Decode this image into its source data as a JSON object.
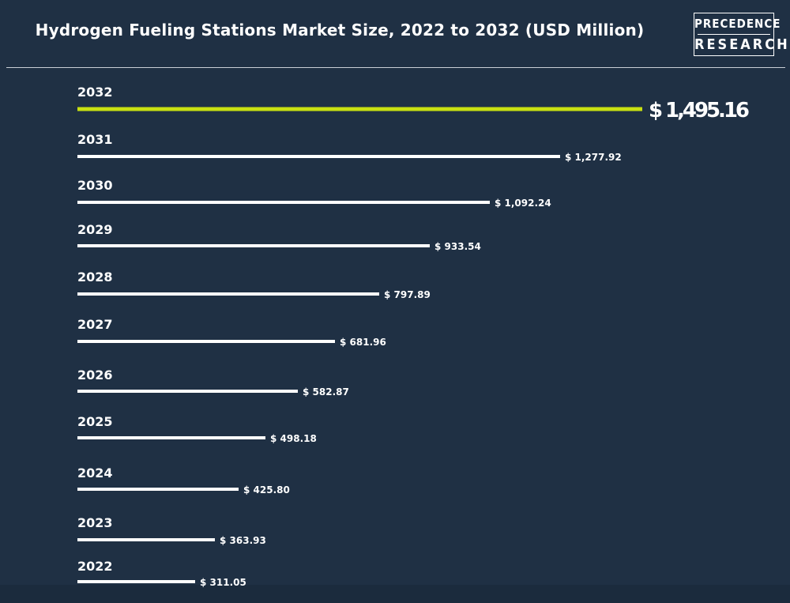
{
  "header": {
    "title": "Hydrogen Fueling Stations Market Size, 2022 to 2032 (USD Million)",
    "logo_line1": "PRECEDENCE",
    "logo_line2": "RESEARCH"
  },
  "colors": {
    "background": "#1f3044",
    "bar_default": "#ffffff",
    "bar_highlight": "#c8e011",
    "text": "#ffffff"
  },
  "chart_data": {
    "type": "bar",
    "orientation": "horizontal",
    "title": "Hydrogen Fueling Stations Market Size, 2022 to 2032 (USD Million)",
    "xlabel": "",
    "ylabel": "",
    "grid": false,
    "legend": "none",
    "highlight_category": "2032",
    "categories": [
      "2032",
      "2031",
      "2030",
      "2029",
      "2028",
      "2027",
      "2026",
      "2025",
      "2024",
      "2023",
      "2022"
    ],
    "values": [
      1495.16,
      1277.92,
      1092.24,
      933.54,
      797.89,
      681.96,
      582.87,
      498.18,
      425.8,
      363.93,
      311.05
    ],
    "value_labels": [
      "$ 1,495.16",
      "$ 1,277.92",
      "$ 1,092.24",
      "$ 933.54",
      "$ 797.89",
      "$ 681.96",
      "$ 582.87",
      "$ 498.18",
      "$ 425.80",
      "$ 363.93",
      "$ 311.05"
    ]
  }
}
